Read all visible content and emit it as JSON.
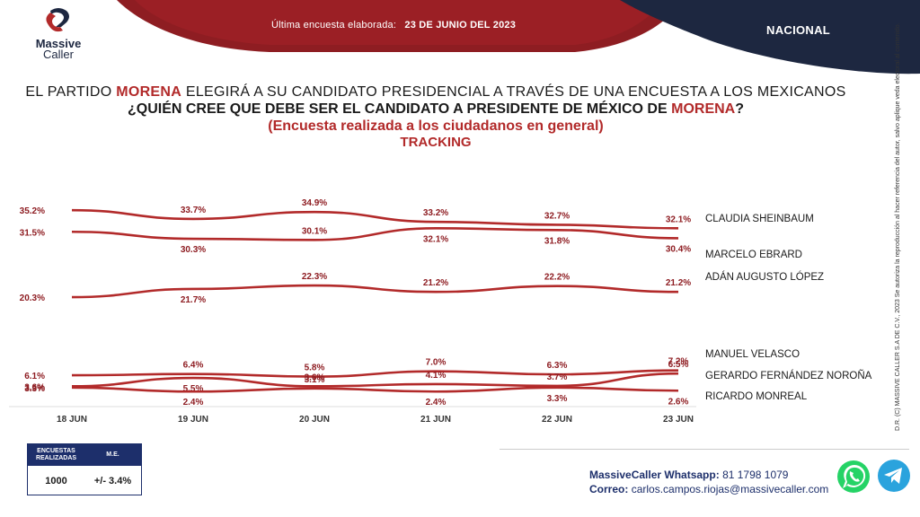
{
  "brand": {
    "logo_line1": "Massive",
    "logo_line2": "Caller"
  },
  "header": {
    "date_label": "Última encuesta elaborada:",
    "date_value": "23 DE JUNIO DEL 2023",
    "scope": "NACIONAL"
  },
  "titles": {
    "line1_a": "EL PARTIDO ",
    "line1_party": "MORENA",
    "line1_b": " ELEGIRÁ A SU CANDIDATO PRESIDENCIAL A TRAVÉS DE UNA ENCUESTA A LOS MEXICANOS",
    "line2_a": "¿QUIÉN CREE QUE DEBE SER EL CANDIDATO  A PRESIDENTE DE MÉXICO DE ",
    "line2_party": "MORENA",
    "line2_b": "?",
    "line3": "(Encuesta realizada  a los ciudadanos  en general)",
    "line4": "TRACKING"
  },
  "colors": {
    "line": "#b22a2a",
    "navy": "#1d2f6b",
    "dark_red": "#8e1d22",
    "whatsapp": "#25d366",
    "telegram": "#2aa3dd"
  },
  "chart_data": {
    "type": "line",
    "title": "TRACKING",
    "x": [
      "18 JUN",
      "19 JUN",
      "20 JUN",
      "21 JUN",
      "22 JUN",
      "23 JUN"
    ],
    "ylabel": "",
    "series": [
      {
        "name": "CLAUDIA SHEINBAUM",
        "values": [
          35.2,
          33.7,
          34.9,
          33.2,
          32.7,
          32.1
        ]
      },
      {
        "name": "MARCELO EBRARD",
        "values": [
          31.5,
          30.3,
          30.1,
          32.1,
          31.8,
          30.4
        ]
      },
      {
        "name": "ADÁN AUGUSTO LÓPEZ",
        "values": [
          20.3,
          21.7,
          22.3,
          21.2,
          22.2,
          21.2
        ]
      },
      {
        "name": "MANUEL VELASCO",
        "values": [
          6.1,
          6.4,
          5.8,
          7.0,
          6.3,
          7.2
        ]
      },
      {
        "name": "GERARDO FERNÁNDEZ NOROÑA",
        "values": [
          3.6,
          5.5,
          3.6,
          4.1,
          3.7,
          6.5
        ]
      },
      {
        "name": "RICARDO MONREAL",
        "values": [
          3.3,
          2.4,
          3.1,
          2.4,
          3.3,
          2.6
        ]
      }
    ],
    "point_labels": [
      [
        "35.2%",
        "33.7%",
        "34.9%",
        "33.2%",
        "32.7%",
        "32.1%"
      ],
      [
        "31.5%",
        "30.3%",
        "30.1%",
        "32.1%",
        "31.8%",
        "30.4%"
      ],
      [
        "20.3%",
        "21.7%",
        "22.3%",
        "21.2%",
        "22.2%",
        "21.2%"
      ],
      [
        "6.1%",
        "6.4%",
        "5.8%",
        "7.0%",
        "6.3%",
        "7.2%"
      ],
      [
        "3.6%",
        "5.5%",
        "3.6%",
        "4.1%",
        "3.7%",
        "6.5%"
      ],
      [
        "3.3%",
        "2.4%",
        "3.1%",
        "2.4%",
        "3.3%",
        "2.6%"
      ]
    ],
    "grid": false,
    "legend": "right-inline"
  },
  "sample": {
    "head_count": "ENCUESTAS REALIZADAS",
    "head_error": "M.E.",
    "count": "1000",
    "error": "+/- 3.4%"
  },
  "contact": {
    "whatsapp_label": "MassiveCaller Whatsapp:",
    "whatsapp_value": "81 1798 1079",
    "email_label": "Correo:",
    "email_value": "carlos.campos.riojas@massivecaller.com"
  },
  "side_note": "D.R. (C) MASSIVE CALLER S.A DE C.V., 2023 Se autoriza la reproducción al hacer referencia del autor, salvo aplique veda electoral al contenido."
}
